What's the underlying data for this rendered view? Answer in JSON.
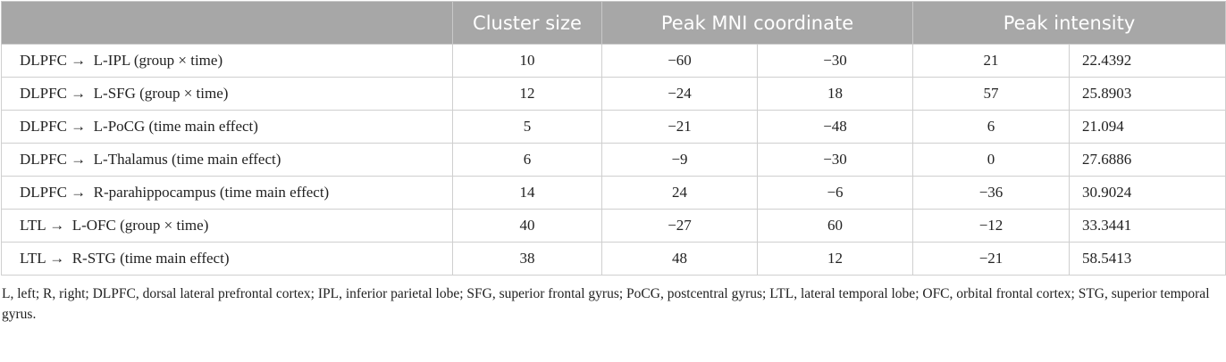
{
  "table": {
    "header": [
      "Cluster size",
      "Peak MNI coordinate",
      "Peak intensity"
    ],
    "rows": [
      [
        "DLPFC →  L-IPL (group × time)",
        "10",
        "−60",
        "−30",
        "21",
        "22.4392"
      ],
      [
        "DLPFC →  L-SFG (group × time)",
        "12",
        "−24",
        "18",
        "57",
        "25.8903"
      ],
      [
        "DLPFC →  L-PoCG (time main effect)",
        "5",
        "−21",
        "−48",
        "6",
        "21.094"
      ],
      [
        "DLPFC →  L-Thalamus (time main effect)",
        "6",
        "−9",
        "−30",
        "0",
        "27.6886"
      ],
      [
        "DLPFC →  R-parahippocampus (time main effect)",
        "14",
        "24",
        "−6",
        "−36",
        "30.9024"
      ],
      [
        "LTL →  L-OFC (group × time)",
        "40",
        "−27",
        "60",
        "−12",
        "33.3441"
      ],
      [
        "LTL →  R-STG (time main effect)",
        "38",
        "48",
        "12",
        "−21",
        "58.5413"
      ]
    ],
    "footnote": "L, left; R, right; DLPFC, dorsal lateral prefrontal cortex; IPL, inferior parietal lobe; SFG, superior frontal gyrus; PoCG, postcentral gyrus; LTL, lateral temporal lobe; OFC, orbital frontal cortex; STG, superior temporal gyrus."
  }
}
